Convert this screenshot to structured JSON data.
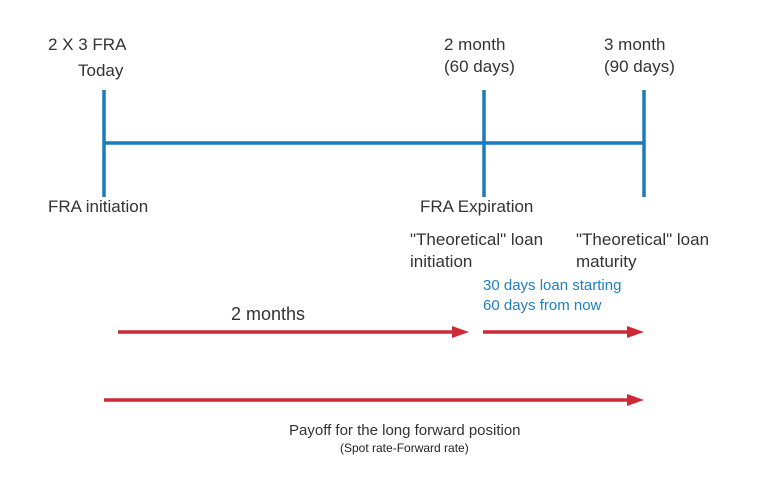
{
  "colors": {
    "timeline": "#1a7bbd",
    "arrow": "#cc2a36",
    "note": "#1f7fc0"
  },
  "labels": {
    "fra_title": "2 X 3 FRA",
    "today": "Today",
    "month2": "2 month",
    "days60": "(60 days)",
    "month3": "3 month",
    "days90": "(90 days)",
    "fra_initiation": "FRA initiation",
    "fra_expiration": "FRA Expiration",
    "loan_init_1": "\"Theoretical\" loan",
    "loan_init_2": "initiation",
    "loan_mat_1": "\"Theoretical\" loan",
    "loan_mat_2": "maturity",
    "note_1": "30 days loan starting",
    "note_2": "60 days from now",
    "two_months": "2 months",
    "payoff": "Payoff for the long forward position",
    "payoff_formula": "(Spot rate-Forward rate)"
  }
}
